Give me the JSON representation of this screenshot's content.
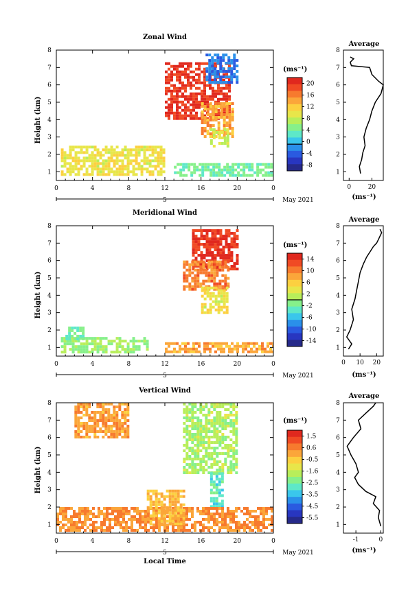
{
  "panels": [
    {
      "title": "Zonal Wind",
      "ylabel": "Height (km)",
      "unit": "(ms⁻¹)",
      "cbar_ticks": [
        "20",
        "16",
        "12",
        "8",
        "4",
        "0",
        "-4",
        "-8"
      ],
      "cbar_colors": [
        "#e0281e",
        "#f04a24",
        "#f77a2e",
        "#fba63a",
        "#fcd040",
        "#e8e64a",
        "#b8ee5a",
        "#86f08a",
        "#5ee8c8",
        "#3ac6ec",
        "#2a90ea",
        "#2a5ae0",
        "#2836c0",
        "#262a8a"
      ],
      "cbar_zero_line_index": 10,
      "avg_title": "Average",
      "avg_xlabel": "(ms⁻¹)",
      "avg_xticks": [
        "0",
        "20"
      ],
      "avg_xlim": [
        -5,
        30
      ],
      "yticks": [
        "8",
        "7",
        "6",
        "5",
        "4",
        "3",
        "2",
        "1"
      ],
      "xticks": [
        "0",
        "4",
        "8",
        "12",
        "16",
        "20",
        "0"
      ],
      "day_label": "5",
      "month_label": "May 2021"
    },
    {
      "title": "Meridional Wind",
      "ylabel": "Height (km)",
      "unit": "(ms⁻¹)",
      "cbar_ticks": [
        "14",
        "10",
        "6",
        "2",
        "-2",
        "-6",
        "-10",
        "-14"
      ],
      "cbar_colors": [
        "#e0281e",
        "#f04a24",
        "#f77a2e",
        "#fba63a",
        "#fcd040",
        "#e8e64a",
        "#b8ee5a",
        "#86f08a",
        "#5ee8c8",
        "#3ac6ec",
        "#2a90ea",
        "#2a5ae0",
        "#2836c0",
        "#262a8a"
      ],
      "cbar_zero_line_index": 7,
      "avg_title": "Average",
      "avg_xlabel": "(ms⁻¹)",
      "avg_xticks": [
        "0",
        "10",
        "20"
      ],
      "avg_xlim": [
        0,
        24
      ],
      "yticks": [
        "8",
        "7",
        "6",
        "5",
        "4",
        "3",
        "2",
        "1"
      ],
      "xticks": [
        "0",
        "4",
        "8",
        "12",
        "16",
        "20",
        "0"
      ],
      "day_label": "5",
      "month_label": "May 2021"
    },
    {
      "title": "Vertical Wind",
      "ylabel": "Height (km)",
      "unit": "(ms⁻¹)",
      "cbar_ticks": [
        "1.5",
        "0.6",
        "-0.5",
        "-1.6",
        "-2.5",
        "-3.5",
        "-4.5",
        "-5.5"
      ],
      "cbar_colors": [
        "#e0281e",
        "#f04a24",
        "#f77a2e",
        "#fba63a",
        "#fcd040",
        "#e8e64a",
        "#b8ee5a",
        "#86f08a",
        "#5ee8c8",
        "#3ac6ec",
        "#2a90ea",
        "#2a5ae0",
        "#2836c0",
        "#262a8a"
      ],
      "cbar_zero_line_index": -1,
      "avg_title": "Average",
      "avg_xlabel": "(ms⁻¹)",
      "avg_xticks": [
        "-1",
        "0"
      ],
      "avg_xlim": [
        -1.5,
        0.1
      ],
      "yticks": [
        "8",
        "7",
        "6",
        "5",
        "4",
        "3",
        "2",
        "1"
      ],
      "xticks": [
        "0",
        "4",
        "8",
        "12",
        "16",
        "20",
        "0"
      ],
      "day_label": "5",
      "month_label": "May 2021",
      "xlabel": "Local Time"
    }
  ],
  "chart_data": [
    {
      "type": "heatmap",
      "title": "Zonal Wind",
      "xlabel": "",
      "ylabel": "Height (km)",
      "xlim": [
        0,
        24
      ],
      "ylim": [
        0.5,
        8
      ],
      "colorbar_label": "(ms⁻¹)",
      "colorbar_range": [
        -10,
        22
      ],
      "regions": [
        {
          "x": [
            12,
            19
          ],
          "y": [
            4,
            7.3
          ],
          "value": 20
        },
        {
          "x": [
            16,
            19.5
          ],
          "y": [
            3,
            5
          ],
          "value": 14
        },
        {
          "x": [
            17,
            19
          ],
          "y": [
            2.5,
            3.5
          ],
          "value": 8
        },
        {
          "x": [
            0.5,
            12
          ],
          "y": [
            0.8,
            2.5
          ],
          "value": 10
        },
        {
          "x": [
            13,
            24
          ],
          "y": [
            0.8,
            1.5
          ],
          "value": 4
        },
        {
          "x": [
            16.5,
            20
          ],
          "y": [
            6.2,
            7.8
          ],
          "value": -3
        }
      ]
    },
    {
      "type": "line",
      "title": "Average",
      "xlabel": "(ms⁻¹)",
      "ylabel": "Height (km)",
      "xlim": [
        -5,
        30
      ],
      "ylim": [
        0.5,
        8
      ],
      "x": [
        10,
        9,
        11,
        12,
        14,
        13,
        15,
        18,
        20,
        23,
        28,
        30,
        26,
        20,
        18,
        2,
        1,
        4,
        1
      ],
      "y": [
        0.9,
        1.3,
        1.7,
        2.1,
        2.5,
        3.0,
        3.5,
        4.0,
        4.5,
        5.0,
        5.5,
        6.0,
        6.2,
        6.6,
        7.0,
        7.1,
        7.3,
        7.5,
        7.6
      ]
    },
    {
      "type": "heatmap",
      "title": "Meridional Wind",
      "xlabel": "",
      "ylabel": "Height (km)",
      "xlim": [
        0,
        24
      ],
      "ylim": [
        0.5,
        8
      ],
      "colorbar_label": "(ms⁻¹)",
      "colorbar_range": [
        -16,
        16
      ],
      "regions": [
        {
          "x": [
            15,
            20
          ],
          "y": [
            5.5,
            7.8
          ],
          "value": 14
        },
        {
          "x": [
            14,
            19
          ],
          "y": [
            4.3,
            6
          ],
          "value": 10
        },
        {
          "x": [
            16,
            19
          ],
          "y": [
            3,
            4.5
          ],
          "value": 4
        },
        {
          "x": [
            0.5,
            10
          ],
          "y": [
            0.7,
            1.6
          ],
          "value": 0
        },
        {
          "x": [
            1,
            3
          ],
          "y": [
            1.5,
            2.2
          ],
          "value": -2
        },
        {
          "x": [
            12,
            24
          ],
          "y": [
            0.8,
            1.3
          ],
          "value": 8
        }
      ]
    },
    {
      "type": "line",
      "title": "Average",
      "xlabel": "(ms⁻¹)",
      "ylabel": "Height (km)",
      "xlim": [
        0,
        24
      ],
      "ylim": [
        0.5,
        8
      ],
      "x": [
        3,
        5,
        2,
        4,
        6,
        5,
        7,
        8,
        9,
        10,
        12,
        14,
        16,
        18,
        20,
        21,
        22,
        23,
        22
      ],
      "y": [
        0.9,
        1.2,
        1.6,
        2.0,
        2.6,
        3.2,
        3.8,
        4.3,
        4.8,
        5.3,
        5.8,
        6.2,
        6.5,
        6.8,
        7.0,
        7.2,
        7.4,
        7.6,
        7.8
      ]
    },
    {
      "type": "heatmap",
      "title": "Vertical Wind",
      "xlabel": "Local Time",
      "ylabel": "Height (km)",
      "xlim": [
        0,
        24
      ],
      "ylim": [
        0.5,
        8
      ],
      "colorbar_label": "(ms⁻¹)",
      "colorbar_range": [
        -6,
        2
      ],
      "regions": [
        {
          "x": [
            14,
            20
          ],
          "y": [
            4,
            8
          ],
          "value": -1.8
        },
        {
          "x": [
            17,
            18.5
          ],
          "y": [
            2,
            4
          ],
          "value": -2.8
        },
        {
          "x": [
            0,
            24
          ],
          "y": [
            0.7,
            2
          ],
          "value": 0.3
        },
        {
          "x": [
            10,
            14
          ],
          "y": [
            1,
            3
          ],
          "value": -0.3
        },
        {
          "x": [
            2,
            8
          ],
          "y": [
            6,
            8
          ],
          "value": 0.1
        }
      ]
    },
    {
      "type": "line",
      "title": "Average",
      "xlabel": "(ms⁻¹)",
      "ylabel": "Height (km)",
      "xlim": [
        -1.5,
        0.1
      ],
      "ylim": [
        0.5,
        8
      ],
      "x": [
        0,
        -0.1,
        -0.05,
        -0.3,
        -0.2,
        -0.6,
        -0.9,
        -1.05,
        -0.9,
        -1.0,
        -1.2,
        -1.35,
        -1.1,
        -0.8,
        -0.9,
        -0.6,
        -0.3,
        -0.2
      ],
      "y": [
        0.9,
        1.4,
        1.8,
        2.2,
        2.6,
        2.9,
        3.3,
        3.7,
        4.0,
        4.5,
        5.0,
        5.5,
        6.0,
        6.5,
        7.0,
        7.4,
        7.8,
        8.0
      ]
    }
  ]
}
